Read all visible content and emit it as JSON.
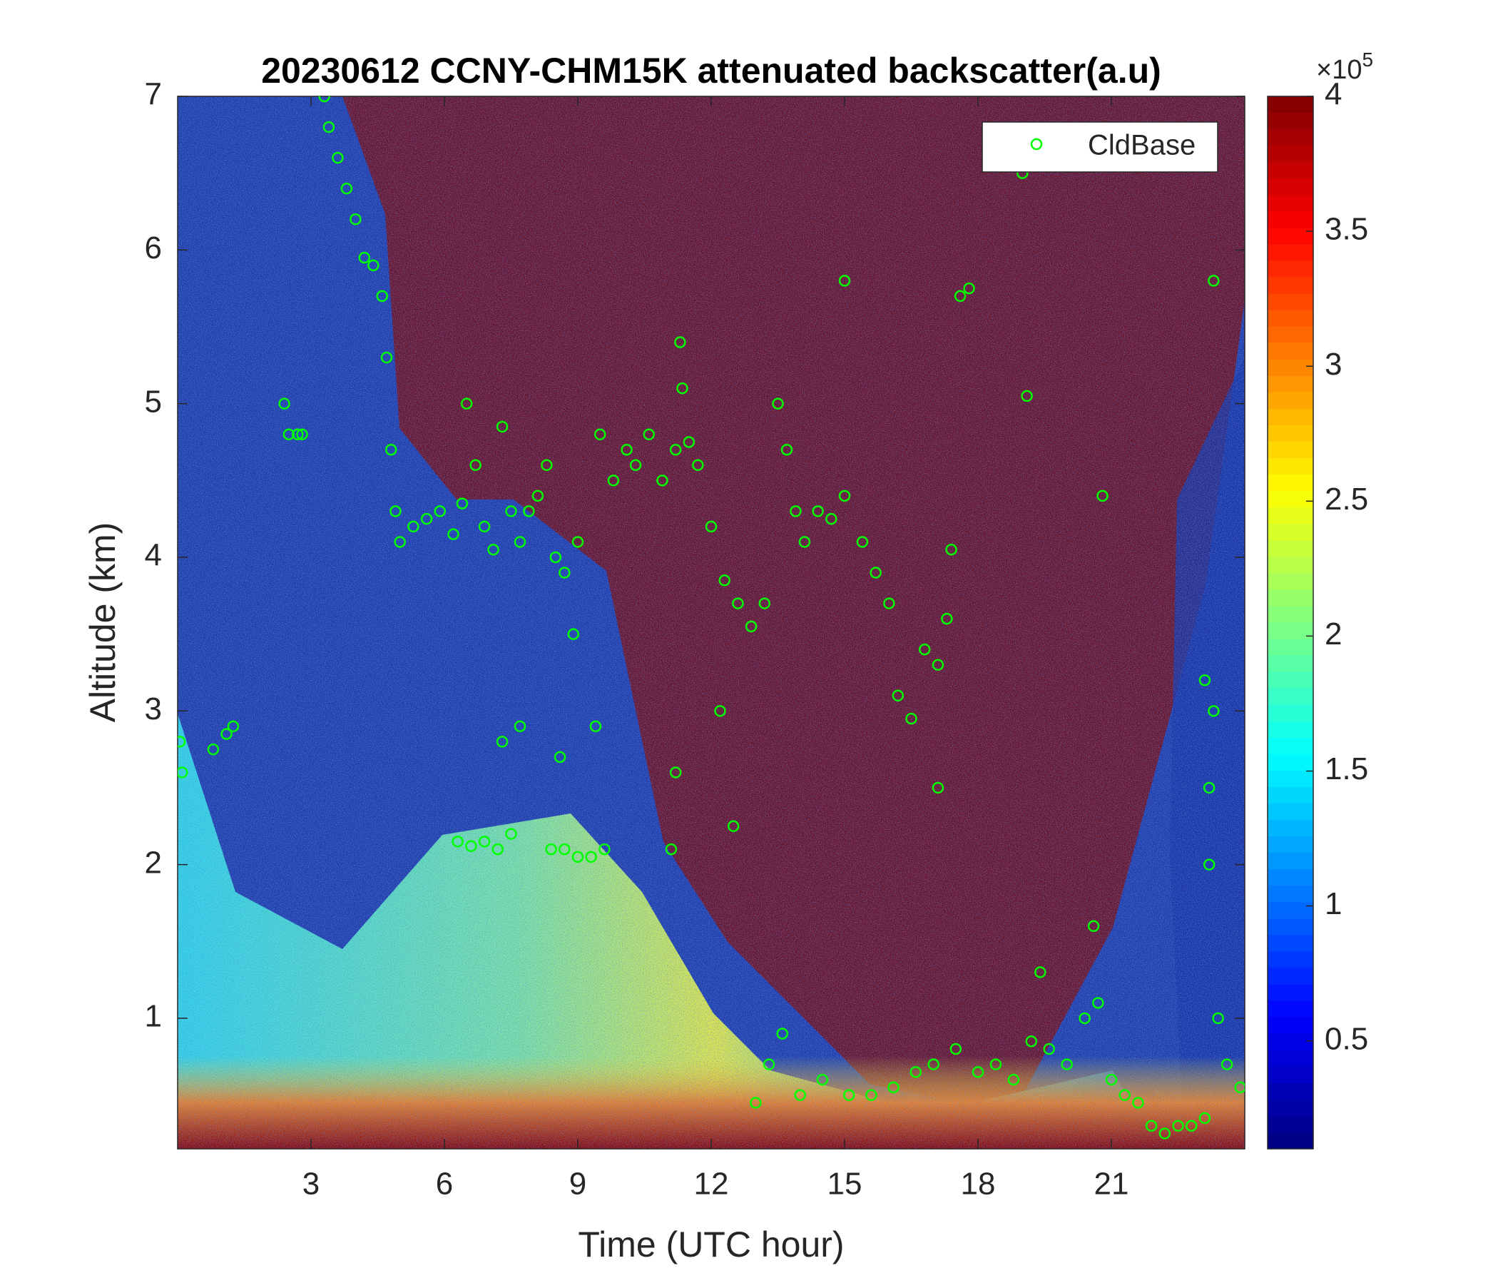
{
  "chart_data": {
    "type": "scatter",
    "title": "20230612 CCNY-CHM15K attenuated backscatter(a.u)",
    "x_label": "Time (UTC hour)",
    "y_label": "Altitude (km)",
    "xlim": [
      0,
      24
    ],
    "ylim": [
      0.15,
      7
    ],
    "xticks": [
      3,
      6,
      9,
      12,
      15,
      18,
      21
    ],
    "yticks": [
      1,
      2,
      3,
      4,
      5,
      6,
      7
    ],
    "legend": "northeast",
    "colorbar": {
      "colormap": "jet",
      "clim": [
        0.1,
        4
      ],
      "ticks": [
        0.5,
        1,
        1.5,
        2,
        2.5,
        3,
        3.5,
        4
      ],
      "scale_base": "×10",
      "scale_exponent": "5"
    },
    "series": [
      {
        "name": "CldBase",
        "color": "#00ff00",
        "marker": "o",
        "x": [
          0.05,
          0.1,
          0.8,
          1.1,
          1.25,
          2.4,
          2.5,
          2.7,
          2.8,
          3.3,
          3.4,
          3.6,
          3.8,
          4.0,
          4.2,
          4.4,
          4.6,
          4.7,
          4.8,
          4.9,
          5.0,
          5.3,
          5.6,
          5.9,
          6.2,
          6.4,
          6.5,
          6.7,
          6.9,
          7.1,
          7.3,
          7.5,
          7.7,
          7.9,
          8.1,
          8.3,
          8.5,
          8.7,
          8.9,
          9.0,
          9.5,
          9.8,
          10.1,
          10.3,
          10.6,
          10.9,
          11.2,
          11.5,
          11.7,
          12.0,
          12.3,
          12.6,
          12.9,
          13.2,
          11.3,
          11.35,
          13.5,
          13.7,
          13.9,
          14.1,
          14.4,
          14.7,
          15.0,
          15.4,
          15.7,
          16.0,
          16.2,
          16.5,
          16.8,
          17.1,
          17.3,
          17.4,
          17.1,
          17.6,
          17.8,
          15.0,
          19.1,
          19.0,
          20.8,
          23.3,
          6.3,
          6.6,
          6.9,
          7.2,
          7.5,
          8.4,
          8.7,
          9.0,
          9.3,
          9.6,
          7.3,
          7.7,
          8.6,
          9.4,
          11.2,
          11.1,
          12.5,
          12.2,
          13.0,
          13.3,
          13.6,
          14.0,
          14.5,
          15.1,
          15.6,
          16.1,
          16.6,
          17.0,
          17.5,
          18.0,
          18.4,
          18.8,
          19.2,
          19.6,
          20.0,
          20.4,
          20.7,
          21.0,
          21.3,
          21.6,
          21.9,
          22.2,
          22.5,
          22.8,
          23.1,
          19.4,
          20.6,
          23.2,
          23.3,
          23.4,
          23.6,
          23.9,
          23.2,
          23.1
        ],
        "y": [
          2.8,
          2.6,
          2.75,
          2.85,
          2.9,
          5.0,
          4.8,
          4.8,
          4.8,
          7.0,
          6.8,
          6.6,
          6.4,
          6.2,
          5.95,
          5.9,
          5.7,
          5.3,
          4.7,
          4.3,
          4.1,
          4.2,
          4.25,
          4.3,
          4.15,
          4.35,
          5.0,
          4.6,
          4.2,
          4.05,
          4.85,
          4.3,
          4.1,
          4.3,
          4.4,
          4.6,
          4.0,
          3.9,
          3.5,
          4.1,
          4.8,
          4.5,
          4.7,
          4.6,
          4.8,
          4.5,
          4.7,
          4.75,
          4.6,
          4.2,
          3.85,
          3.7,
          3.55,
          3.7,
          5.4,
          5.1,
          5.0,
          4.7,
          4.3,
          4.1,
          4.3,
          4.25,
          4.4,
          4.1,
          3.9,
          3.7,
          3.1,
          2.95,
          3.4,
          3.3,
          3.6,
          4.05,
          2.5,
          5.7,
          5.75,
          5.8,
          5.05,
          6.5,
          4.4,
          5.8,
          2.15,
          2.12,
          2.15,
          2.1,
          2.2,
          2.1,
          2.1,
          2.05,
          2.05,
          2.1,
          2.8,
          2.9,
          2.7,
          2.9,
          2.6,
          2.1,
          2.25,
          3.0,
          0.45,
          0.7,
          0.9,
          0.5,
          0.6,
          0.5,
          0.5,
          0.55,
          0.65,
          0.7,
          0.8,
          0.65,
          0.7,
          0.6,
          0.85,
          0.8,
          0.7,
          1.0,
          1.1,
          0.6,
          0.5,
          0.45,
          0.3,
          0.25,
          0.3,
          0.3,
          0.35,
          1.3,
          1.6,
          2.5,
          3.0,
          1.0,
          0.7,
          0.55,
          2.0,
          3.2
        ]
      }
    ]
  }
}
